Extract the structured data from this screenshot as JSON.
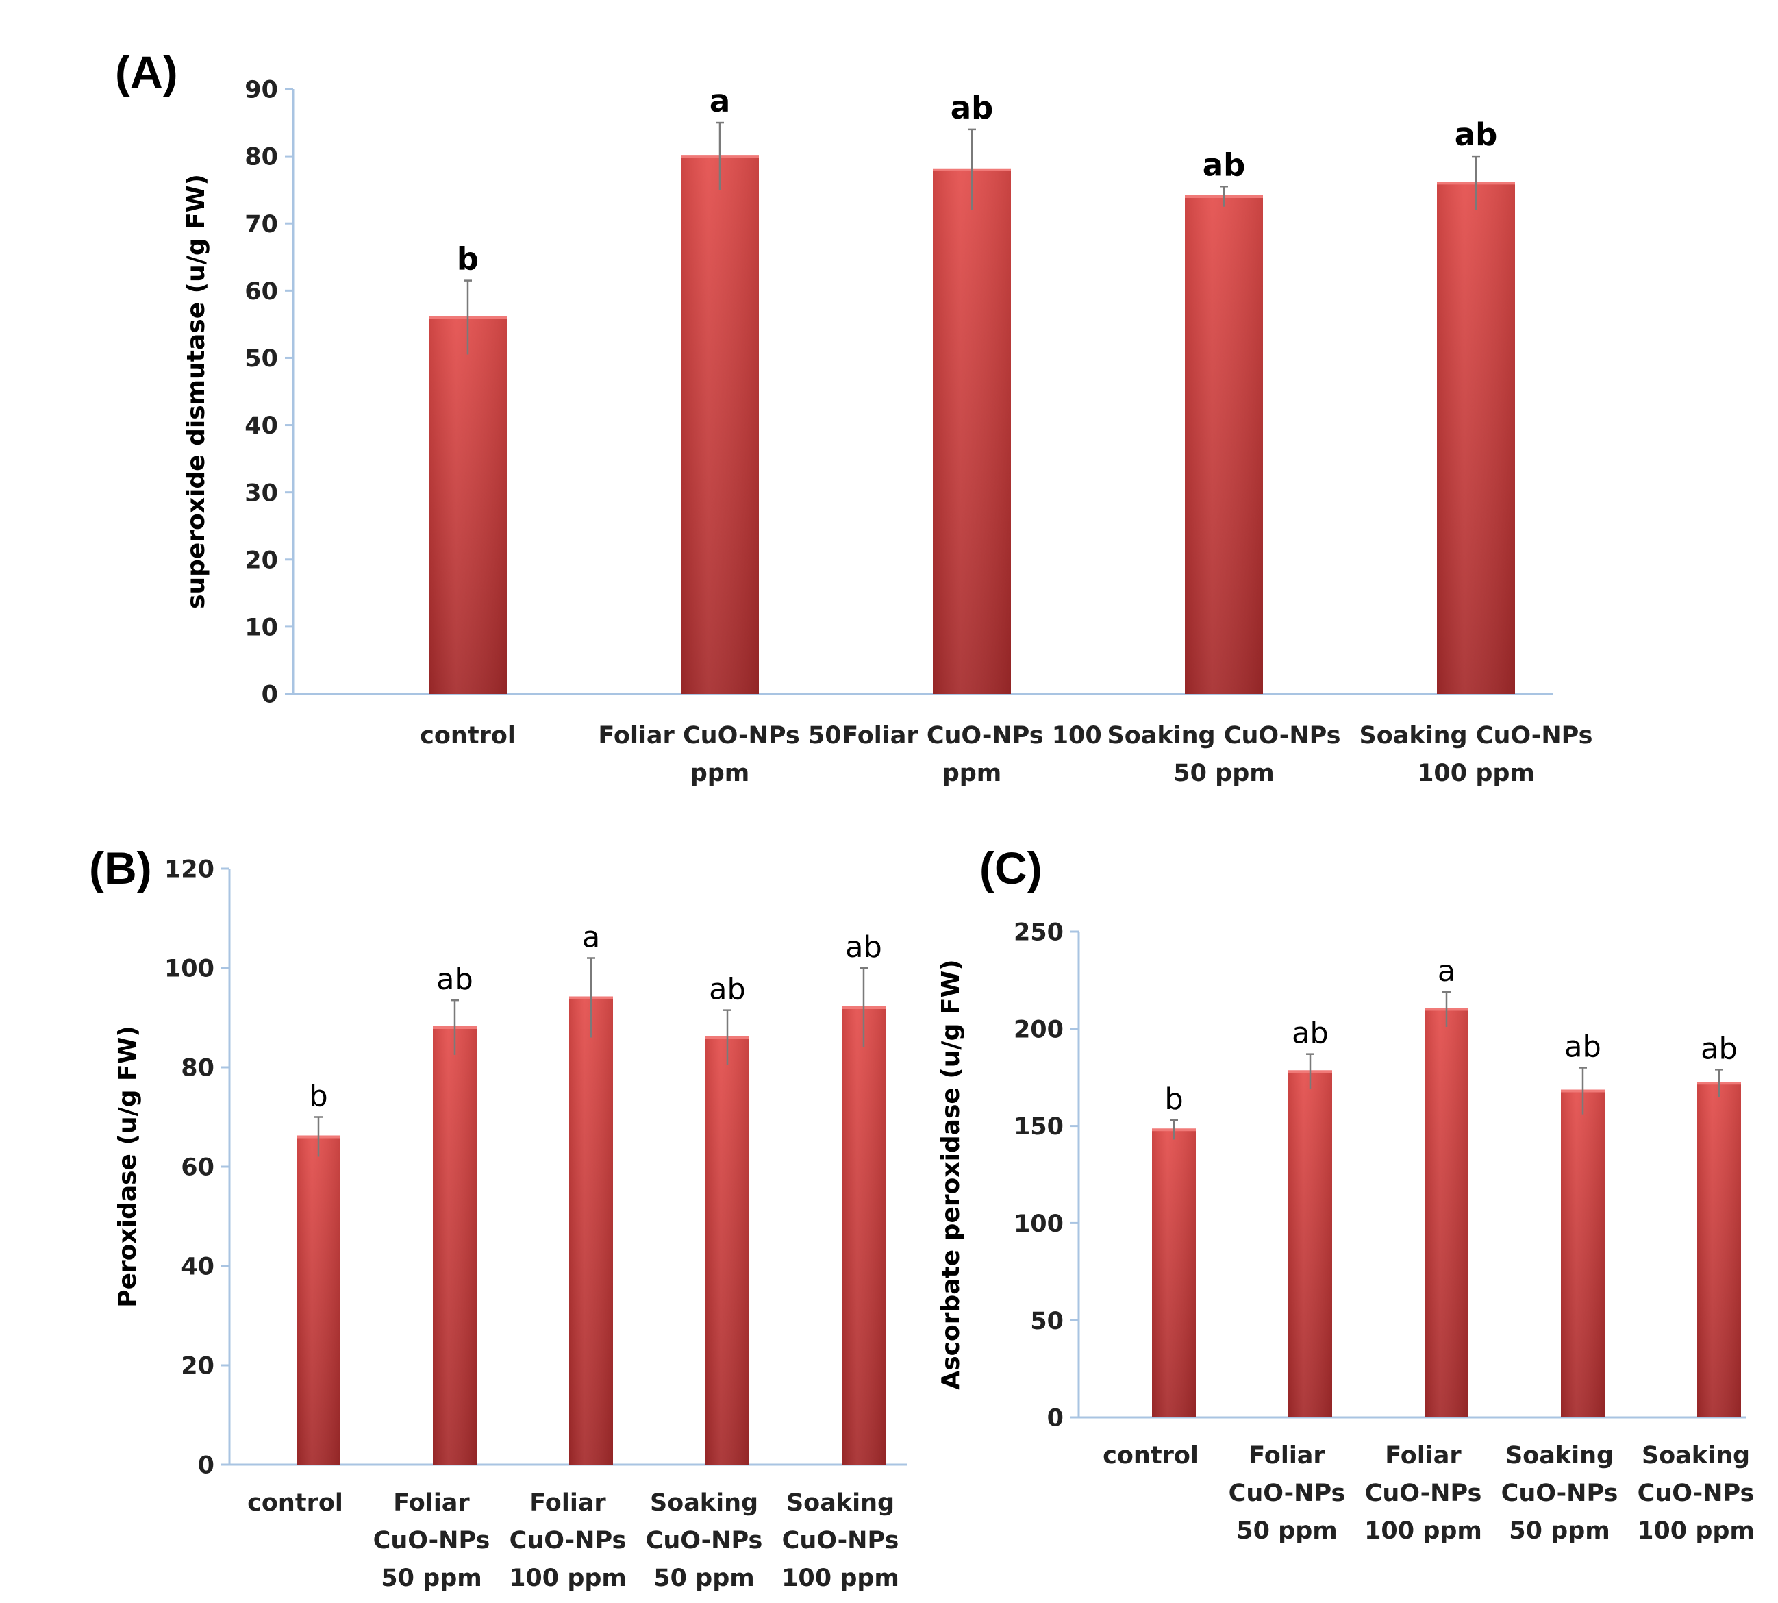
{
  "colors": {
    "bar_top": "#e44d4b",
    "bar_bottom": "#a52a2b",
    "axis": "#a9c4e2",
    "error_bar": "#7a7a7a"
  },
  "chart_data": [
    {
      "id": "A",
      "panel_label": "(A)",
      "type": "bar",
      "ylabel": "superoxide dismutase (u/g FW)",
      "ylim": [
        0,
        90
      ],
      "yticks": [
        0,
        10,
        20,
        30,
        40,
        50,
        60,
        70,
        80,
        90
      ],
      "categories": [
        [
          "control"
        ],
        [
          "Foliar CuO-NPs 50",
          "ppm"
        ],
        [
          "Foliar CuO-NPs 100",
          "ppm"
        ],
        [
          "Soaking CuO-NPs",
          "50 ppm"
        ],
        [
          "Soaking CuO-NPs",
          "100 ppm"
        ]
      ],
      "values": [
        56,
        80,
        78,
        74,
        76
      ],
      "errors": [
        5.5,
        5,
        6,
        1.5,
        4
      ],
      "significance": [
        "b",
        "a",
        "ab",
        "ab",
        "ab"
      ],
      "significance_style": "bold"
    },
    {
      "id": "B",
      "panel_label": "(B)",
      "type": "bar",
      "ylabel": "Peroxidase (u/g FW)",
      "ylim": [
        0,
        120
      ],
      "yticks": [
        0,
        20,
        40,
        60,
        80,
        100,
        120
      ],
      "categories": [
        [
          "control"
        ],
        [
          "Foliar",
          "CuO-NPs",
          "50 ppm"
        ],
        [
          "Foliar",
          "CuO-NPs",
          "100 ppm"
        ],
        [
          "Soaking",
          "CuO-NPs",
          "50 ppm"
        ],
        [
          "Soaking",
          "CuO-NPs",
          "100 ppm"
        ]
      ],
      "values": [
        66,
        88,
        94,
        86,
        92
      ],
      "errors": [
        4,
        5.5,
        8,
        5.5,
        8
      ],
      "significance": [
        "b",
        "ab",
        "a",
        "ab",
        "ab"
      ],
      "significance_style": "plain"
    },
    {
      "id": "C",
      "panel_label": "(C)",
      "type": "bar",
      "ylabel": "Ascorbate peroxidase  (u/g FW)",
      "ylim": [
        0,
        250
      ],
      "yticks": [
        0,
        50,
        100,
        150,
        200,
        250
      ],
      "categories": [
        [
          "control"
        ],
        [
          "Foliar",
          "CuO-NPs",
          "50 ppm"
        ],
        [
          "Foliar",
          "CuO-NPs",
          "100 ppm"
        ],
        [
          "Soaking",
          "CuO-NPs",
          "50 ppm"
        ],
        [
          "Soaking",
          "CuO-NPs",
          "100 ppm"
        ]
      ],
      "values": [
        148,
        178,
        210,
        168,
        172
      ],
      "errors": [
        5,
        9,
        9,
        12,
        7
      ],
      "significance": [
        "b",
        "ab",
        "a",
        "ab",
        "ab"
      ],
      "significance_style": "plain"
    }
  ]
}
